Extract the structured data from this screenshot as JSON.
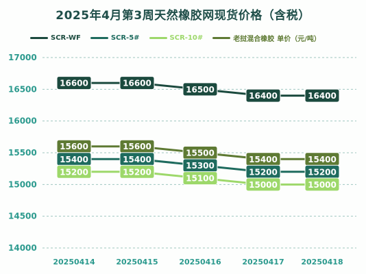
{
  "title": "2025年4月第3周天然橡胶网现货价格（含税）",
  "legend_suffix": "单价（元/吨）",
  "chart_data": {
    "type": "line",
    "title": "2025年4月第3周天然橡胶网现货价格（含税）",
    "x": [
      "20250414",
      "20250415",
      "20250416",
      "20250417",
      "20250418"
    ],
    "ylim": [
      14000,
      17000
    ],
    "yticks": [
      14000,
      14500,
      15000,
      15500,
      16000,
      16500,
      17000
    ],
    "grid": true,
    "legend_position": "top",
    "series": [
      {
        "name": "SCR-WF",
        "color": "#1b4a3e",
        "values": [
          16600,
          16600,
          16500,
          16400,
          16400
        ]
      },
      {
        "name": "SCR-5#",
        "color": "#1e6b5e",
        "values": [
          15400,
          15400,
          15300,
          15200,
          15200
        ]
      },
      {
        "name": "SCR-10#",
        "color": "#9dd86a",
        "values": [
          15200,
          15200,
          15100,
          15000,
          15000
        ]
      },
      {
        "name": "老挝混合橡胶",
        "color": "#5e7a33",
        "values": [
          15600,
          15600,
          15500,
          15400,
          15400
        ]
      }
    ]
  }
}
